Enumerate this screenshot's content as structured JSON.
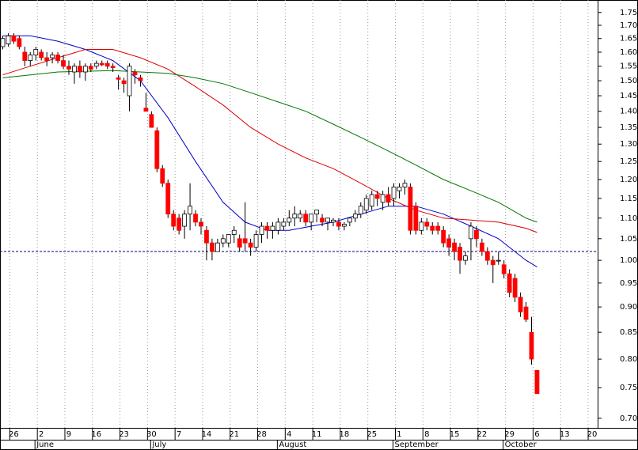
{
  "chart_data": {
    "type": "candlestick",
    "log": true,
    "ylim": [
      0.685,
      1.8
    ],
    "yticks": [
      1.75,
      {
        "value": 1.7,
        "label": "1.70"
      },
      1.65,
      {
        "value": 1.6,
        "label": "1.60"
      },
      1.55,
      {
        "value": 1.5,
        "label": "1.50"
      },
      1.45,
      {
        "value": 1.4,
        "label": "1.40"
      },
      1.35,
      {
        "value": 1.3,
        "label": "1.30"
      },
      1.25,
      {
        "value": 1.2,
        "label": "1.20"
      },
      1.15,
      {
        "value": 1.1,
        "label": "1.10"
      },
      1.05,
      {
        "value": 1.0,
        "label": "1.00"
      },
      0.95,
      {
        "value": 0.9,
        "label": "0.90"
      },
      0.85,
      {
        "value": 0.8,
        "label": "0.80"
      },
      0.75,
      {
        "value": 0.7,
        "label": "0.70"
      }
    ],
    "xlim": [
      -0.5,
      108
    ],
    "xticks": [
      {
        "value": 2,
        "label": "26"
      },
      {
        "value": 7,
        "label": "2"
      },
      {
        "value": 12,
        "label": "9"
      },
      {
        "value": 17,
        "label": "16"
      },
      {
        "value": 22,
        "label": "23"
      },
      {
        "value": 27,
        "label": "30"
      },
      {
        "value": 32,
        "label": "7"
      },
      {
        "value": 37,
        "label": "14"
      },
      {
        "value": 42,
        "label": "21"
      },
      {
        "value": 47,
        "label": "28"
      },
      {
        "value": 52,
        "label": "4"
      },
      {
        "value": 57,
        "label": "11"
      },
      {
        "value": 62,
        "label": "18"
      },
      {
        "value": 67,
        "label": "25"
      },
      {
        "value": 72,
        "label": "1"
      },
      {
        "value": 77,
        "label": "8"
      },
      {
        "value": 82,
        "label": "15"
      },
      {
        "value": 87,
        "label": "22"
      },
      {
        "value": 92,
        "label": "29"
      },
      {
        "value": 97,
        "label": "6"
      },
      {
        "value": 102,
        "label": "13"
      },
      {
        "value": 107,
        "label": "20"
      }
    ],
    "months": [
      {
        "value": 7,
        "label": "June"
      },
      {
        "value": 28,
        "label": "July"
      },
      {
        "value": 51,
        "label": "August"
      },
      {
        "value": 72,
        "label": "September"
      },
      {
        "value": 92,
        "label": "October"
      }
    ],
    "grid": true,
    "up_color": "#ffffff",
    "down_color": "#ff0000",
    "reference_line": {
      "value": 1.02,
      "color": "#000080"
    },
    "open": [
      1.62,
      1.63,
      1.66,
      1.65,
      1.6,
      1.57,
      1.59,
      1.6,
      1.58,
      1.58,
      1.59,
      1.57,
      1.55,
      1.53,
      1.55,
      1.53,
      1.55,
      1.55,
      1.56,
      1.56,
      1.55,
      1.51,
      1.5,
      1.45,
      1.53,
      1.51,
      1.41,
      1.39,
      1.34,
      1.23,
      1.19,
      1.11,
      1.1,
      1.08,
      1.11,
      1.11,
      1.09,
      1.07,
      1.04,
      1.02,
      1.04,
      1.04,
      1.06,
      1.05,
      1.05,
      1.04,
      1.03,
      1.06,
      1.08,
      1.07,
      1.07,
      1.08,
      1.09,
      1.1,
      1.1,
      1.11,
      1.09,
      1.11,
      1.1,
      1.09,
      1.09,
      1.09,
      1.08,
      1.09,
      1.1,
      1.11,
      1.12,
      1.13,
      1.16,
      1.14,
      1.16,
      1.15,
      1.17,
      1.18,
      1.18,
      1.13,
      1.07,
      1.09,
      1.08,
      1.08,
      1.07,
      1.05,
      1.04,
      1.03,
      1.0,
      1.05,
      1.07,
      1.04,
      1.02,
      1.0,
      1.0,
      0.99,
      0.97,
      0.96,
      0.92,
      0.9,
      0.85,
      0.78
    ],
    "high": [
      1.66,
      1.67,
      1.67,
      1.66,
      1.62,
      1.6,
      1.62,
      1.61,
      1.6,
      1.6,
      1.6,
      1.59,
      1.57,
      1.56,
      1.57,
      1.56,
      1.56,
      1.57,
      1.57,
      1.57,
      1.56,
      1.52,
      1.51,
      1.56,
      1.54,
      1.52,
      1.46,
      1.4,
      1.35,
      1.24,
      1.2,
      1.12,
      1.11,
      1.12,
      1.19,
      1.12,
      1.1,
      1.08,
      1.05,
      1.05,
      1.06,
      1.06,
      1.08,
      1.06,
      1.14,
      1.05,
      1.07,
      1.09,
      1.09,
      1.09,
      1.1,
      1.1,
      1.12,
      1.13,
      1.12,
      1.12,
      1.11,
      1.12,
      1.11,
      1.1,
      1.1,
      1.1,
      1.09,
      1.1,
      1.12,
      1.14,
      1.16,
      1.17,
      1.17,
      1.17,
      1.18,
      1.19,
      1.19,
      1.2,
      1.19,
      1.14,
      1.1,
      1.1,
      1.09,
      1.09,
      1.08,
      1.06,
      1.05,
      1.04,
      1.02,
      1.09,
      1.08,
      1.05,
      1.03,
      1.01,
      1.02,
      1.0,
      0.98,
      0.97,
      0.93,
      0.91,
      0.88,
      0.78
    ],
    "low": [
      1.61,
      1.62,
      1.63,
      1.61,
      1.55,
      1.55,
      1.57,
      1.57,
      1.55,
      1.56,
      1.56,
      1.54,
      1.52,
      1.49,
      1.51,
      1.5,
      1.53,
      1.54,
      1.55,
      1.54,
      1.53,
      1.47,
      1.46,
      1.4,
      1.49,
      1.48,
      1.4,
      1.35,
      1.22,
      1.18,
      1.1,
      1.07,
      1.06,
      1.05,
      1.07,
      1.08,
      1.06,
      1.0,
      1.0,
      1.02,
      1.03,
      1.03,
      1.04,
      1.02,
      1.02,
      1.01,
      1.02,
      1.04,
      1.05,
      1.05,
      1.06,
      1.07,
      1.08,
      1.08,
      1.09,
      1.08,
      1.07,
      1.09,
      1.08,
      1.07,
      1.08,
      1.07,
      1.07,
      1.08,
      1.09,
      1.1,
      1.11,
      1.12,
      1.13,
      1.12,
      1.13,
      1.13,
      1.15,
      1.16,
      1.06,
      1.06,
      1.06,
      1.07,
      1.06,
      1.06,
      1.03,
      1.01,
      1.0,
      0.97,
      0.99,
      1.0,
      1.03,
      1.01,
      0.99,
      0.95,
      0.99,
      0.96,
      0.92,
      0.91,
      0.88,
      0.87,
      0.79,
      0.74
    ],
    "close": [
      1.65,
      1.66,
      1.64,
      1.62,
      1.57,
      1.59,
      1.61,
      1.58,
      1.57,
      1.59,
      1.57,
      1.55,
      1.54,
      1.55,
      1.53,
      1.55,
      1.54,
      1.56,
      1.555,
      1.55,
      1.545,
      1.505,
      1.49,
      1.55,
      1.52,
      1.5,
      1.4,
      1.35,
      1.23,
      1.19,
      1.11,
      1.08,
      1.07,
      1.11,
      1.13,
      1.09,
      1.08,
      1.04,
      1.02,
      1.04,
      1.05,
      1.06,
      1.07,
      1.03,
      1.04,
      1.03,
      1.06,
      1.08,
      1.07,
      1.08,
      1.09,
      1.09,
      1.1,
      1.11,
      1.11,
      1.09,
      1.11,
      1.12,
      1.09,
      1.1,
      1.095,
      1.08,
      1.085,
      1.1,
      1.11,
      1.13,
      1.15,
      1.16,
      1.15,
      1.16,
      1.14,
      1.18,
      1.18,
      1.19,
      1.07,
      1.07,
      1.09,
      1.08,
      1.07,
      1.07,
      1.04,
      1.03,
      1.02,
      1.0,
      1.01,
      1.08,
      1.05,
      1.02,
      1.0,
      0.99,
      1.0,
      0.97,
      0.93,
      0.92,
      0.89,
      0.875,
      0.8,
      0.74
    ],
    "series": [
      {
        "color": "#0000cc",
        "x": [
          0,
          5,
          10,
          15,
          20,
          25,
          30,
          35,
          40,
          44,
          48,
          52,
          56,
          60,
          65,
          70,
          75,
          80,
          85,
          90,
          95,
          97
        ],
        "values": [
          1.66,
          1.66,
          1.64,
          1.61,
          1.57,
          1.5,
          1.38,
          1.25,
          1.14,
          1.09,
          1.07,
          1.07,
          1.08,
          1.09,
          1.11,
          1.13,
          1.13,
          1.11,
          1.08,
          1.05,
          1.0,
          0.985
        ]
      },
      {
        "color": "#dd0000",
        "x": [
          0,
          5,
          10,
          15,
          20,
          25,
          30,
          35,
          40,
          45,
          50,
          55,
          60,
          65,
          70,
          75,
          80,
          85,
          90,
          95,
          97
        ],
        "values": [
          1.52,
          1.55,
          1.58,
          1.61,
          1.61,
          1.58,
          1.54,
          1.48,
          1.42,
          1.35,
          1.3,
          1.26,
          1.23,
          1.19,
          1.15,
          1.12,
          1.1,
          1.095,
          1.09,
          1.075,
          1.065
        ]
      },
      {
        "color": "#007700",
        "x": [
          0,
          5,
          10,
          20,
          30,
          35,
          40,
          45,
          50,
          55,
          60,
          65,
          70,
          75,
          80,
          85,
          90,
          95,
          97
        ],
        "values": [
          1.51,
          1.52,
          1.53,
          1.535,
          1.525,
          1.51,
          1.49,
          1.46,
          1.43,
          1.4,
          1.36,
          1.32,
          1.28,
          1.24,
          1.2,
          1.17,
          1.14,
          1.1,
          1.09
        ]
      }
    ]
  }
}
